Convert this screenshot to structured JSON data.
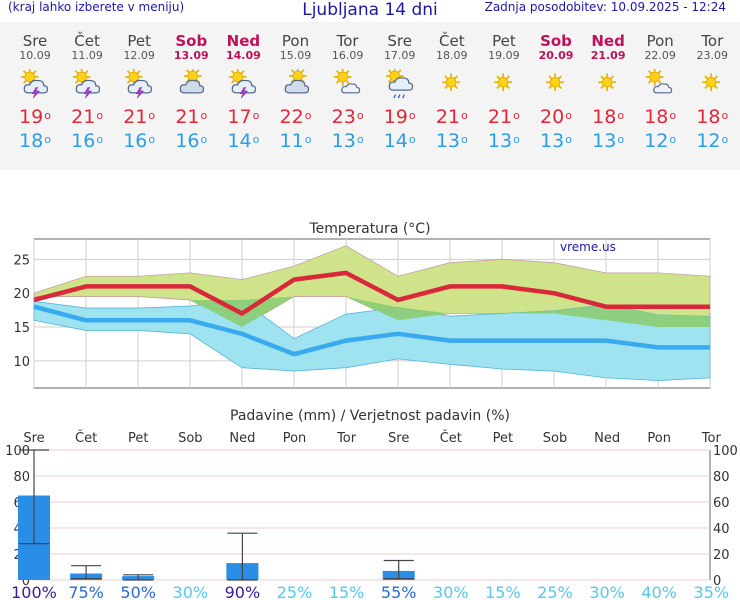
{
  "header": {
    "menu_hint": "(kraj lahko izberete v meniju)",
    "title": "Ljubljana 14 dni",
    "updated": "Zadnja posodobitev: 10.09.2025 - 12:24"
  },
  "days": [
    {
      "name": "Sre",
      "date": "10.09",
      "weekend": false,
      "icon": "thunderstorm-sun-icon",
      "tmax": "19",
      "tmin": "18"
    },
    {
      "name": "Čet",
      "date": "11.09",
      "weekend": false,
      "icon": "thunderstorm-sun-icon",
      "tmax": "21",
      "tmin": "16"
    },
    {
      "name": "Pet",
      "date": "12.09",
      "weekend": false,
      "icon": "thunderstorm-sun-icon",
      "tmax": "21",
      "tmin": "16"
    },
    {
      "name": "Sob",
      "date": "13.09",
      "weekend": true,
      "icon": "partly-cloudy-icon",
      "tmax": "21",
      "tmin": "16"
    },
    {
      "name": "Ned",
      "date": "14.09",
      "weekend": true,
      "icon": "thunderstorm-sun-icon",
      "tmax": "17",
      "tmin": "14"
    },
    {
      "name": "Pon",
      "date": "15.09",
      "weekend": false,
      "icon": "partly-cloudy-icon",
      "tmax": "22",
      "tmin": "11"
    },
    {
      "name": "Tor",
      "date": "16.09",
      "weekend": false,
      "icon": "sun-cloud-icon",
      "tmax": "23",
      "tmin": "13"
    },
    {
      "name": "Sre",
      "date": "17.09",
      "weekend": false,
      "icon": "sun-cloud-rain-icon",
      "tmax": "19",
      "tmin": "14"
    },
    {
      "name": "Čet",
      "date": "18.09",
      "weekend": false,
      "icon": "sun-icon",
      "tmax": "21",
      "tmin": "13"
    },
    {
      "name": "Pet",
      "date": "19.09",
      "weekend": false,
      "icon": "sun-icon",
      "tmax": "21",
      "tmin": "13"
    },
    {
      "name": "Sob",
      "date": "20.09",
      "weekend": true,
      "icon": "sun-icon",
      "tmax": "20",
      "tmin": "13"
    },
    {
      "name": "Ned",
      "date": "21.09",
      "weekend": true,
      "icon": "sun-icon",
      "tmax": "18",
      "tmin": "13"
    },
    {
      "name": "Pon",
      "date": "22.09",
      "weekend": false,
      "icon": "sun-cloud-icon",
      "tmax": "18",
      "tmin": "12"
    },
    {
      "name": "Tor",
      "date": "23.09",
      "weekend": false,
      "icon": "sun-icon",
      "tmax": "18",
      "tmin": "12"
    }
  ],
  "colors": {
    "max_line": "#d8283a",
    "min_line": "#3aaaf0",
    "max_band": "#cfe48a",
    "min_band": "#9ee3ef",
    "overlap": "#8ccc72",
    "precip_bar": "#2a8de6",
    "weekend": "#c01058",
    "pct_purple": "#3a1a9a",
    "pct_blue": "#2a6ad0",
    "pct_cyan": "#55c8ee"
  },
  "chart_data": [
    {
      "type": "line",
      "title": "Temperatura (°C)",
      "watermark": "vreme.us",
      "x": [
        "10.09",
        "11.09",
        "12.09",
        "13.09",
        "14.09",
        "15.09",
        "16.09",
        "17.09",
        "18.09",
        "19.09",
        "20.09",
        "21.09",
        "22.09",
        "23.09"
      ],
      "ylim": [
        6,
        28
      ],
      "yticks": [
        10,
        15,
        20,
        25
      ],
      "grid": true,
      "series": [
        {
          "role": "max",
          "values": [
            19,
            21,
            21,
            21,
            17,
            22,
            23,
            19,
            21,
            21,
            20,
            18,
            18,
            18
          ],
          "band_low": [
            19.5,
            19.5,
            19.5,
            19,
            15,
            19.5,
            19.5,
            16,
            17,
            17,
            17,
            16,
            15,
            15
          ],
          "band_high": [
            20,
            22.5,
            22.5,
            23,
            22,
            24,
            27,
            22.5,
            24.5,
            25,
            24.5,
            23,
            23,
            22.5
          ]
        },
        {
          "role": "min",
          "values": [
            18,
            16,
            16,
            16,
            14,
            11,
            13,
            14,
            13,
            13,
            13,
            13,
            12,
            12
          ],
          "band_low": [
            16,
            14.5,
            14.5,
            14,
            9,
            8.5,
            9,
            10.3,
            9.5,
            8.8,
            8.5,
            7.5,
            7.1,
            7.5
          ],
          "band_high": [
            18.8,
            17.8,
            17.8,
            18.1,
            19,
            13.3,
            16.9,
            17.9,
            16.6,
            17,
            17.4,
            18.3,
            16.8,
            16.6
          ]
        }
      ]
    },
    {
      "type": "bar",
      "title": "Padavine (mm) / Verjetnost padavin (%)",
      "categories": [
        "Sre",
        "Čet",
        "Pet",
        "Sob",
        "Ned",
        "Pon",
        "Tor",
        "Sre",
        "Čet",
        "Pet",
        "Sob",
        "Ned",
        "Pon",
        "Tor"
      ],
      "weekend": [
        false,
        false,
        false,
        true,
        true,
        false,
        false,
        false,
        false,
        false,
        true,
        true,
        false,
        false
      ],
      "ylim": [
        0,
        100
      ],
      "yticks": [
        0,
        20,
        40,
        60,
        80,
        100
      ],
      "values": [
        65,
        5,
        3,
        0,
        13,
        0,
        0,
        7,
        0,
        0,
        0,
        0,
        0,
        0
      ],
      "error_low": [
        28,
        1,
        0,
        null,
        0,
        null,
        null,
        1,
        null,
        null,
        null,
        null,
        null,
        null
      ],
      "error_high": [
        100,
        11,
        4,
        null,
        36,
        null,
        null,
        15,
        null,
        null,
        null,
        null,
        null,
        null
      ],
      "probability": [
        "100%",
        "75%",
        "50%",
        "30%",
        "90%",
        "25%",
        "15%",
        "55%",
        "30%",
        "15%",
        "25%",
        "30%",
        "40%",
        "35%"
      ]
    }
  ]
}
